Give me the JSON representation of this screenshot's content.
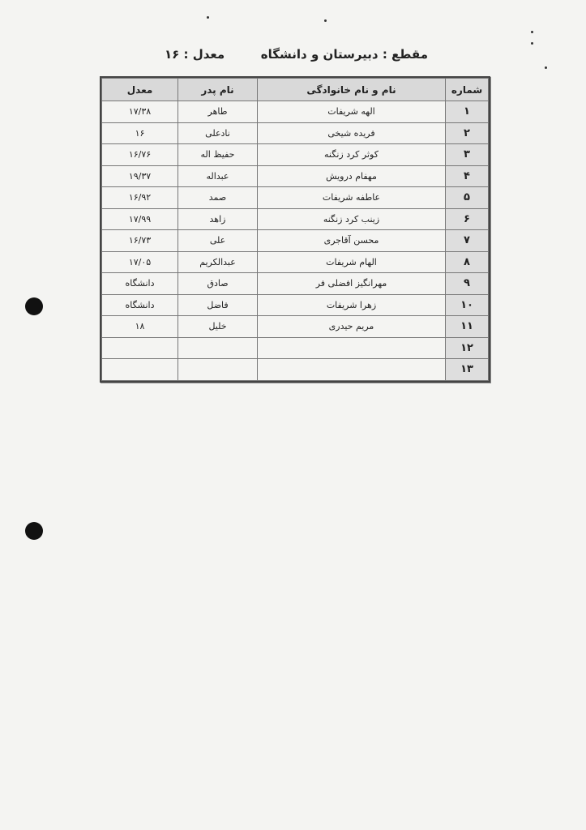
{
  "header": {
    "section": "مقطع : دبیرستان و دانشگاه",
    "average": "معدل : ۱۶"
  },
  "table": {
    "columns": [
      "شماره",
      "نام و نام خانوادگی",
      "نام پدر",
      "معدل"
    ],
    "rows": [
      {
        "num": "۱",
        "name": "الهه شریفات",
        "father": "طاهر",
        "avg": "۱۷/۳۸"
      },
      {
        "num": "۲",
        "name": "فریده شیخی",
        "father": "نادعلی",
        "avg": "۱۶"
      },
      {
        "num": "۳",
        "name": "کوثر کرد زنگنه",
        "father": "حفیظ اله",
        "avg": "۱۶/۷۶"
      },
      {
        "num": "۴",
        "name": "مهفام درویش",
        "father": "عبداله",
        "avg": "۱۹/۳۷"
      },
      {
        "num": "۵",
        "name": "عاطفه شریفات",
        "father": "صمد",
        "avg": "۱۶/۹۲"
      },
      {
        "num": "۶",
        "name": "زینب کرد زنگنه",
        "father": "زاهد",
        "avg": "۱۷/۹۹"
      },
      {
        "num": "۷",
        "name": "محسن آقاجری",
        "father": "علی",
        "avg": "۱۶/۷۳"
      },
      {
        "num": "۸",
        "name": "الهام شریفات",
        "father": "عبدالکریم",
        "avg": "۱۷/۰۵"
      },
      {
        "num": "۹",
        "name": "مهرانگیز افضلی فر",
        "father": "صادق",
        "avg": "دانشگاه"
      },
      {
        "num": "۱۰",
        "name": "زهرا شریفات",
        "father": "فاضل",
        "avg": "دانشگاه"
      },
      {
        "num": "۱۱",
        "name": "مریم حیدری",
        "father": "خلیل",
        "avg": "۱۸"
      },
      {
        "num": "۱۲",
        "name": "",
        "father": "",
        "avg": ""
      },
      {
        "num": "۱۳",
        "name": "",
        "father": "",
        "avg": ""
      }
    ]
  }
}
